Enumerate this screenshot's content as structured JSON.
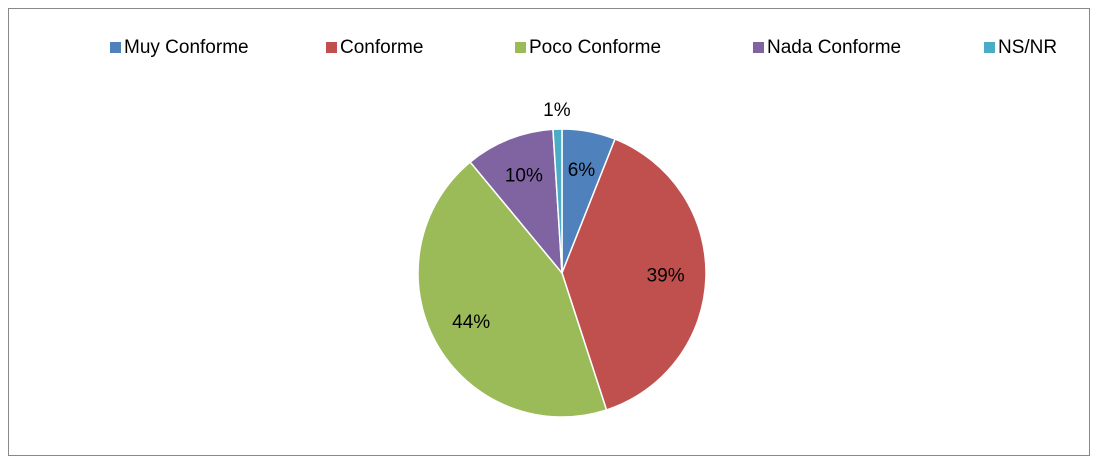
{
  "chart_data": {
    "type": "pie",
    "categories": [
      "Muy Conforme",
      "Conforme",
      "Poco Conforme",
      "Nada Conforme",
      "NS/NR"
    ],
    "values": [
      6,
      39,
      44,
      10,
      1
    ],
    "value_labels": [
      "6%",
      "39%",
      "44%",
      "10%",
      "1%"
    ],
    "colors": [
      "#4f81bd",
      "#c0504d",
      "#9bbb59",
      "#8064a2",
      "#4bacc6"
    ],
    "legend": "top"
  }
}
